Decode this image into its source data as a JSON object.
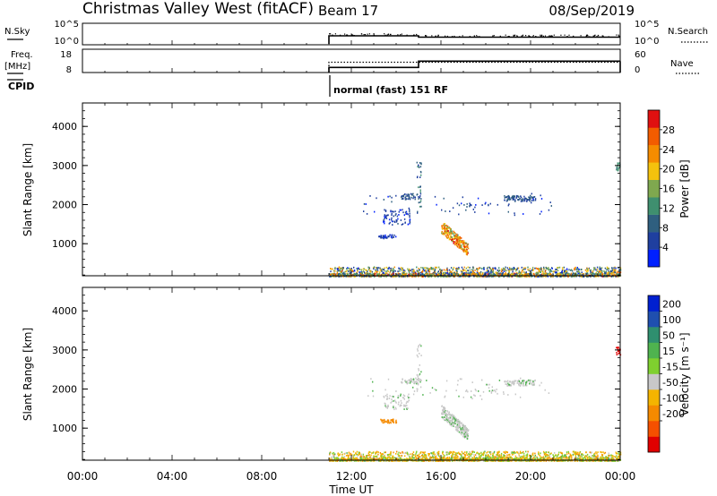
{
  "header": {
    "station": "Christmas Valley West (fitACF)",
    "beam": "Beam 17",
    "date": "08/Sep/2019"
  },
  "panel_labels": {
    "nsky": "N.Sky",
    "nsearch": "N.Search",
    "freq_line1": "Freq.",
    "freq_line2": "[MHz]",
    "nave": "Nave",
    "cpid": "CPID",
    "cpid_value": "normal (fast) 151 RF"
  },
  "colors": {
    "power_scale": [
      "#0020ff",
      "#1f3f9f",
      "#2f5f7f",
      "#3f8f6f",
      "#7fa84f",
      "#f4c20d",
      "#f58c00",
      "#f25c00",
      "#e01010"
    ],
    "velocity_scale": [
      "#e00000",
      "#f55000",
      "#f58a00",
      "#f4b400",
      "#c8c8c8",
      "#7fd02f",
      "#4fb34f",
      "#2f8f6f",
      "#1f4faf",
      "#0020d0"
    ]
  },
  "chart_data": [
    {
      "type": "line",
      "name": "noise-panel",
      "left_axis": {
        "label": "N.Sky",
        "ticks": [
          "10^5",
          "10^0"
        ]
      },
      "right_axis": {
        "label": "N.Search",
        "ticks": [
          "10^5",
          "10^0"
        ]
      },
      "x_hours": [
        11,
        11,
        15,
        15,
        24
      ],
      "sky_level": [
        0.0,
        0.6,
        0.6,
        0.5,
        0.5
      ]
    },
    {
      "type": "line",
      "name": "freq-nave-panel",
      "left_axis": {
        "label": "Freq. [MHz]",
        "ticks": [
          "18",
          "8"
        ]
      },
      "right_axis": {
        "label": "Nave",
        "ticks": [
          "60",
          "0"
        ]
      },
      "freq_x": [
        11,
        11,
        15,
        15,
        24
      ],
      "freq_mhz": [
        8,
        10.5,
        10.5,
        13.5,
        13.5
      ],
      "nave_x": [
        11,
        11,
        24
      ],
      "nave": [
        0,
        30,
        30
      ]
    },
    {
      "type": "heatmap",
      "name": "power",
      "ylabel": "Slant Range [km]",
      "yticks": [
        1000,
        2000,
        3000,
        4000
      ],
      "ylim": [
        180,
        4600
      ],
      "xlim": [
        0,
        24
      ],
      "colorbar_label": "Power [dB]",
      "colorbar_ticks": [
        4,
        8,
        12,
        16,
        20,
        24,
        28
      ],
      "colorbar_range": [
        0,
        32
      ]
    },
    {
      "type": "heatmap",
      "name": "velocity",
      "ylabel": "Slant Range [km]",
      "yticks": [
        1000,
        2000,
        3000,
        4000
      ],
      "ylim": [
        180,
        4600
      ],
      "xlim": [
        0,
        24
      ],
      "xlabel": "Time UT",
      "xticks": [
        "00:00",
        "04:00",
        "08:00",
        "12:00",
        "16:00",
        "20:00",
        "00:00"
      ],
      "colorbar_label": "Velocity [m s⁻¹]",
      "colorbar_ticks": [
        "200",
        "100",
        "50",
        "15",
        "-15",
        "-50",
        "-100",
        "-200"
      ]
    }
  ]
}
